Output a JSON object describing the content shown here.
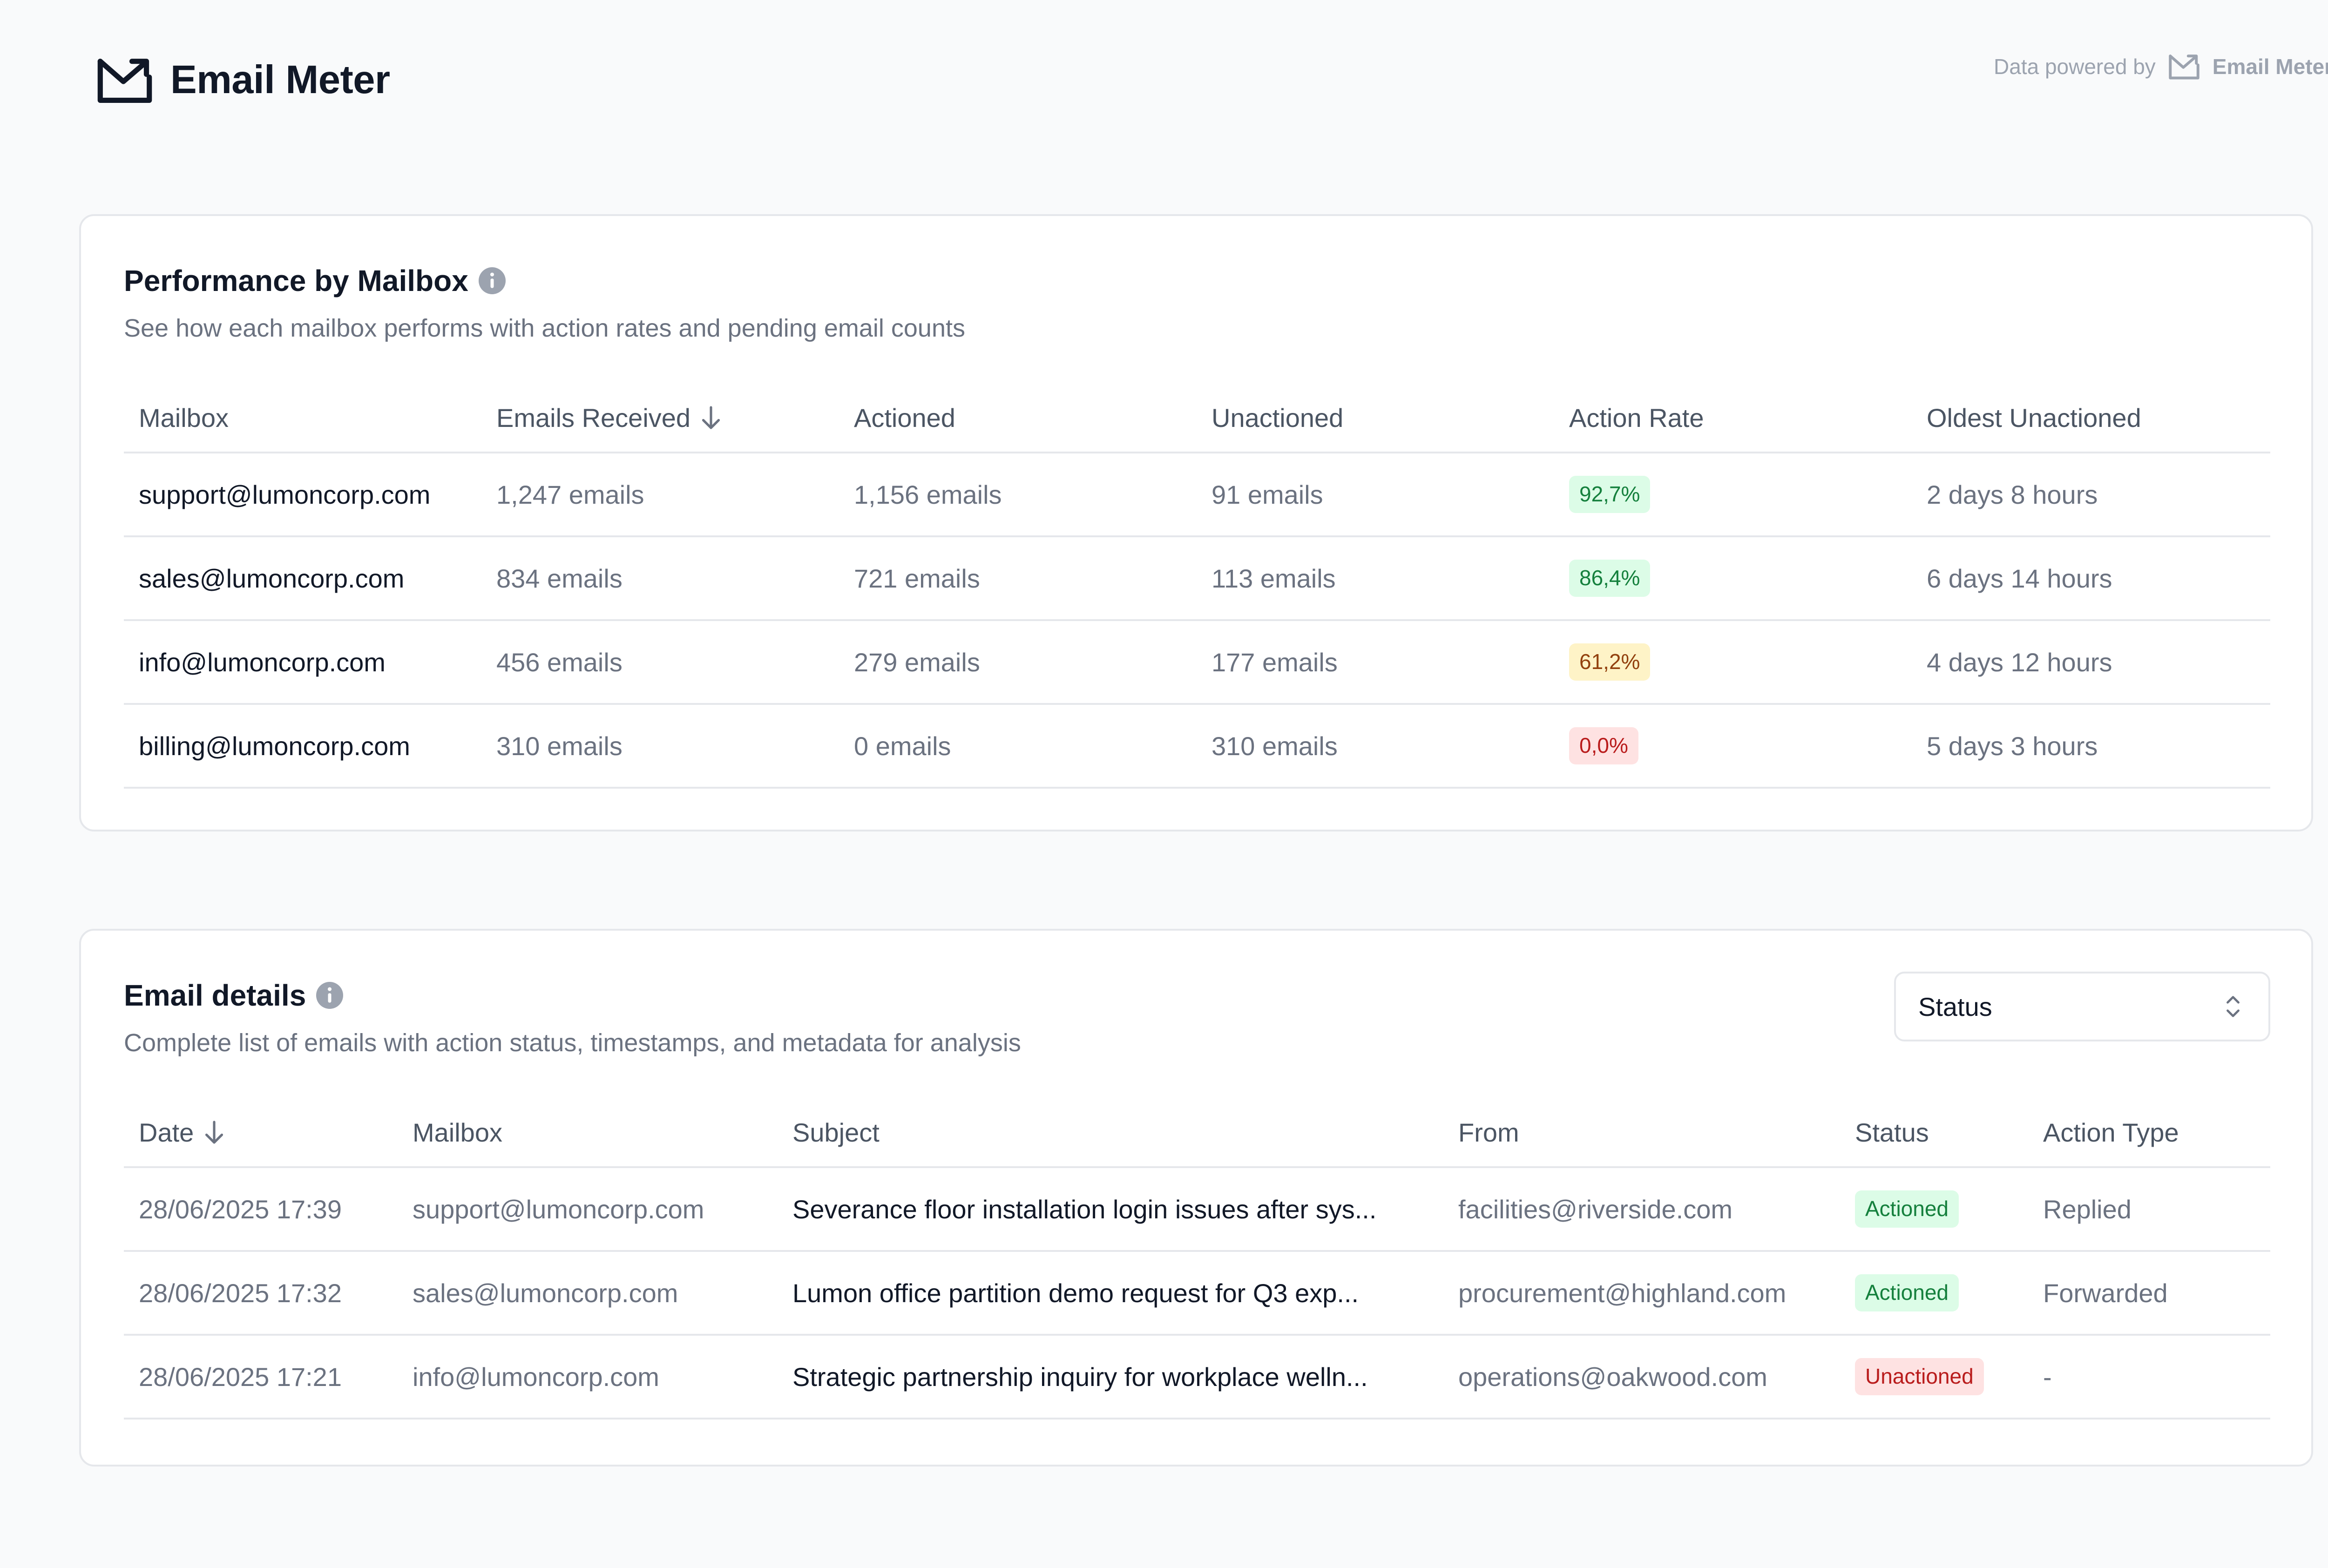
{
  "header": {
    "brand_title": "Email Meter",
    "powered_text": "Data powered by",
    "powered_brand": "Email Meter"
  },
  "performance": {
    "title": "Performance by Mailbox",
    "subtitle": "See how each mailbox performs with action rates and pending email counts",
    "columns": [
      "Mailbox",
      "Emails Received",
      "Actioned",
      "Unactioned",
      "Action Rate",
      "Oldest Unactioned"
    ],
    "rows": [
      {
        "mailbox": "support@lumoncorp.com",
        "received": "1,247 emails",
        "actioned": "1,156 emails",
        "unactioned": "91 emails",
        "rate": "92,7%",
        "oldest": "2 days 8 hours"
      },
      {
        "mailbox": "sales@lumoncorp.com",
        "received": "834 emails",
        "actioned": "721 emails",
        "unactioned": "113 emails",
        "rate": "86,4%",
        "oldest": "6 days 14 hours"
      },
      {
        "mailbox": "info@lumoncorp.com",
        "received": "456 emails",
        "actioned": "279 emails",
        "unactioned": "177 emails",
        "rate": "61,2%",
        "oldest": "4 days 12 hours"
      },
      {
        "mailbox": "billing@lumoncorp.com",
        "received": "310 emails",
        "actioned": "0 emails",
        "unactioned": "310 emails",
        "rate": "0,0%",
        "oldest": "5 days 3 hours"
      }
    ]
  },
  "details": {
    "title": "Email details",
    "subtitle": "Complete list of emails with action status, timestamps, and metadata for analysis",
    "filter": {
      "label": "Status"
    },
    "columns": [
      "Date",
      "Mailbox",
      "Subject",
      "From",
      "Status",
      "Action Type"
    ],
    "rows": [
      {
        "date": "28/06/2025 17:39",
        "mailbox": "support@lumoncorp.com",
        "subject": "Severance floor installation login issues after sys...",
        "from": "facilities@riverside.com",
        "status": "Actioned",
        "action": "Replied"
      },
      {
        "date": "28/06/2025 17:32",
        "mailbox": "sales@lumoncorp.com",
        "subject": "Lumon office partition demo request for Q3 exp...",
        "from": "procurement@highland.com",
        "status": "Actioned",
        "action": "Forwarded"
      },
      {
        "date": "28/06/2025 17:21",
        "mailbox": "info@lumoncorp.com",
        "subject": "Strategic partnership inquiry for workplace welln...",
        "from": "operations@oakwood.com",
        "status": "Unactioned",
        "action": "-"
      }
    ]
  },
  "colors": {
    "green_bg": "#dcfce7",
    "green_text": "#15803d",
    "yellow_bg": "#fef3c7",
    "yellow_text": "#92400e",
    "red_bg": "#fee2e2",
    "red_text": "#b91c1c"
  },
  "icons": {
    "brand": "envelope-arrow-icon",
    "info": "info-icon",
    "sort": "arrow-down-icon",
    "select": "chevron-up-down-icon"
  }
}
